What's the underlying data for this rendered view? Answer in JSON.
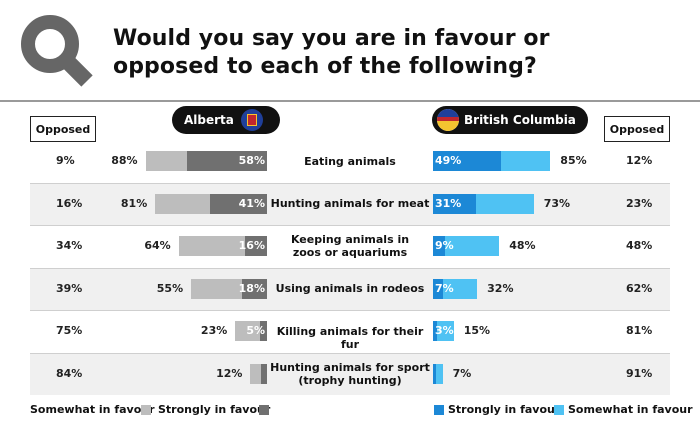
{
  "header": {
    "title_line1": "Would you say you are in favour or",
    "title_line2": "opposed to each of the following?"
  },
  "colors": {
    "ab_strong": "#707070",
    "ab_somewhat": "#bdbdbd",
    "bc_strong": "#1c88d6",
    "bc_somewhat": "#4fc2f3",
    "row_shade": "#f0f0f0",
    "divider": "#9a9a9a"
  },
  "icons": {
    "logo": "magnifier-icon",
    "alberta_flag": "alberta-flag-icon",
    "bc_flag": "bc-flag-icon"
  },
  "columns": {
    "opposed_left": "Opposed",
    "opposed_right": "Opposed",
    "alberta": "Alberta",
    "bc": "British Columbia"
  },
  "legend": {
    "ab_somewhat": "Somewhat in favour",
    "ab_strong": "Strongly in favour",
    "bc_strong": "Strongly in favour",
    "bc_somewhat": "Somewhat in favour"
  },
  "chart_data": {
    "type": "bar",
    "categories": [
      "Eating animals",
      "Hunting animals for meat",
      "Keeping animals in zoos or aquariums",
      "Using animals in rodeos",
      "Killing animals for their fur",
      "Hunting animals for sport (trophy hunting)"
    ],
    "category_lines": [
      [
        "Eating animals"
      ],
      [
        "Hunting animals for meat"
      ],
      [
        "Keeping animals in",
        "zoos or aquariums"
      ],
      [
        "Using animals in rodeos"
      ],
      [
        "Killing animals for their fur"
      ],
      [
        "Hunting animals for sport",
        "(trophy hunting)"
      ]
    ],
    "series": [
      {
        "name": "Alberta – Strongly in favour",
        "values": [
          58,
          41,
          16,
          18,
          5,
          4
        ]
      },
      {
        "name": "Alberta – Total in favour",
        "values": [
          88,
          81,
          64,
          55,
          23,
          12
        ]
      },
      {
        "name": "Alberta – Opposed",
        "values": [
          9,
          16,
          34,
          39,
          75,
          84
        ]
      },
      {
        "name": "British Columbia – Strongly in favour",
        "values": [
          49,
          31,
          9,
          7,
          3,
          2
        ]
      },
      {
        "name": "British Columbia – Total in favour",
        "values": [
          85,
          73,
          48,
          32,
          15,
          7
        ]
      },
      {
        "name": "British Columbia – Opposed",
        "values": [
          12,
          23,
          48,
          62,
          81,
          91
        ]
      }
    ],
    "strong_labels_ab": [
      "58%",
      "41%",
      "16%",
      "18%",
      "5%",
      ""
    ],
    "total_labels_ab": [
      "88%",
      "81%",
      "64%",
      "55%",
      "23%",
      "12%"
    ],
    "opposed_labels_ab": [
      "9%",
      "16%",
      "34%",
      "39%",
      "75%",
      "84%"
    ],
    "strong_labels_bc": [
      "49%",
      "31%",
      "9%",
      "7%",
      "3%",
      ""
    ],
    "total_labels_bc": [
      "85%",
      "73%",
      "48%",
      "32%",
      "15%",
      "7%"
    ],
    "opposed_labels_bc": [
      "12%",
      "23%",
      "48%",
      "62%",
      "81%",
      "91%"
    ]
  }
}
